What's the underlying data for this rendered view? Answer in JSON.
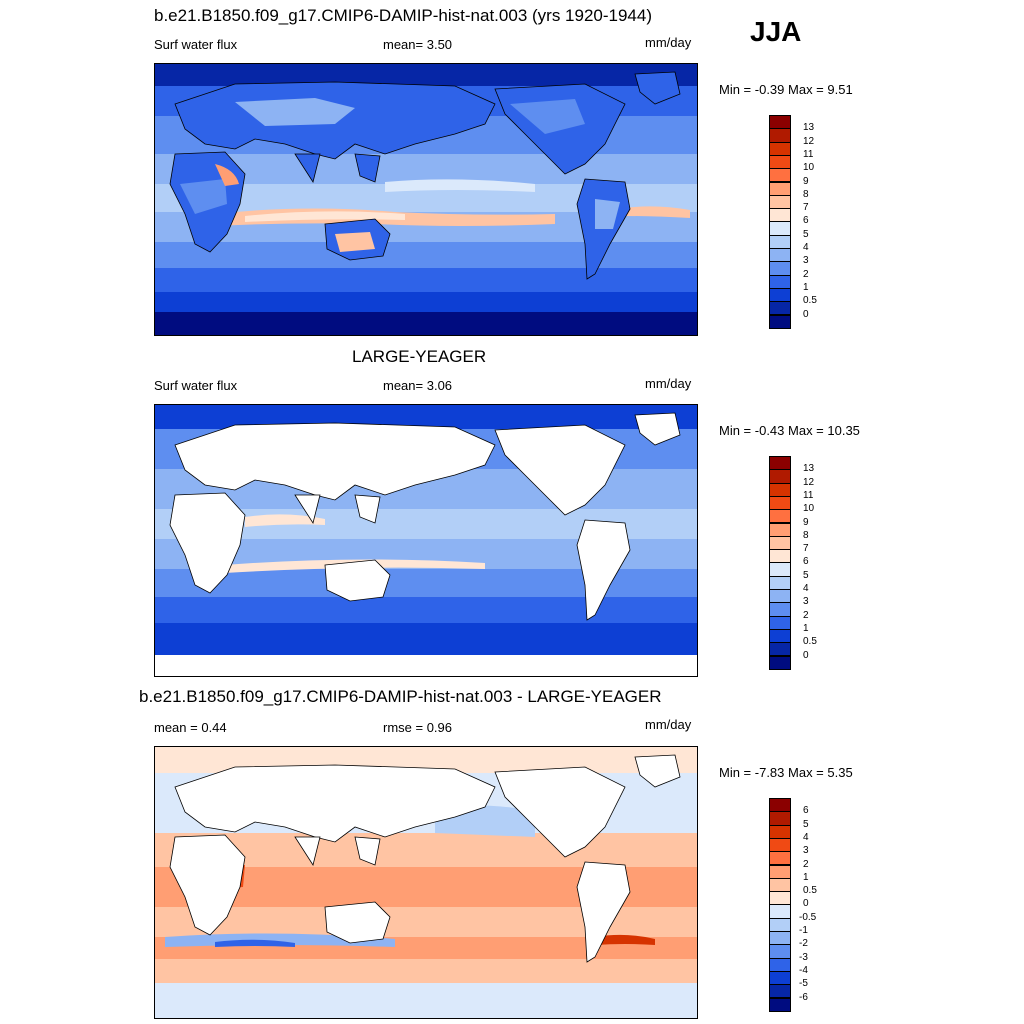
{
  "season": "JJA",
  "panels": [
    {
      "id": "p1",
      "title": "b.e21.B1850.f09_g17.CMIP6-DAMIP-hist-nat.003 (yrs 1920-1944)",
      "left_label": "Surf water flux",
      "mid_label": "mean=   3.50",
      "units": "mm/day",
      "minmax": "Min =  -0.39 Max =   9.51",
      "land_masked": false,
      "colorbar": {
        "colors": [
          "#8b0000",
          "#b01a00",
          "#d63300",
          "#f04a14",
          "#ff7040",
          "#ff9e73",
          "#ffc4a3",
          "#ffe6d5",
          "#dbe9fb",
          "#b2cff7",
          "#8db3f3",
          "#5e8ef0",
          "#2f63e8",
          "#0d3fd4",
          "#0626a6",
          "#000c80"
        ],
        "ticks": [
          "13",
          "12",
          "11",
          "10",
          "9",
          "8",
          "7",
          "6",
          "5",
          "4",
          "3",
          "2",
          "1",
          "0.5",
          "0"
        ]
      }
    },
    {
      "id": "p2",
      "title": "LARGE-YEAGER",
      "left_label": "Surf water flux",
      "mid_label": "mean=   3.06",
      "units": "mm/day",
      "minmax": "Min =  -0.43 Max =  10.35",
      "land_masked": true,
      "colorbar": {
        "colors": [
          "#8b0000",
          "#b01a00",
          "#d63300",
          "#f04a14",
          "#ff7040",
          "#ff9e73",
          "#ffc4a3",
          "#ffe6d5",
          "#dbe9fb",
          "#b2cff7",
          "#8db3f3",
          "#5e8ef0",
          "#2f63e8",
          "#0d3fd4",
          "#0626a6",
          "#000c80"
        ],
        "ticks": [
          "13",
          "12",
          "11",
          "10",
          "9",
          "8",
          "7",
          "6",
          "5",
          "4",
          "3",
          "2",
          "1",
          "0.5",
          "0"
        ]
      }
    },
    {
      "id": "p3",
      "title": "b.e21.B1850.f09_g17.CMIP6-DAMIP-hist-nat.003 - LARGE-YEAGER",
      "left_label": "mean =   0.44",
      "mid_label": "rmse =   0.96",
      "units": "mm/day",
      "minmax": "Min =  -7.83 Max =   5.35",
      "land_masked": true,
      "colorbar": {
        "colors": [
          "#8b0000",
          "#b01a00",
          "#d63300",
          "#f04a14",
          "#ff7040",
          "#ff9e73",
          "#ffc4a3",
          "#ffe6d5",
          "#dbe9fb",
          "#b2cff7",
          "#8db3f3",
          "#5e8ef0",
          "#2f63e8",
          "#0d3fd4",
          "#0626a6",
          "#000c80"
        ],
        "ticks": [
          "6",
          "5",
          "4",
          "3",
          "2",
          "1",
          "0.5",
          "0",
          "-0.5",
          "-1",
          "-2",
          "-3",
          "-4",
          "-5",
          "-6"
        ]
      }
    }
  ]
}
